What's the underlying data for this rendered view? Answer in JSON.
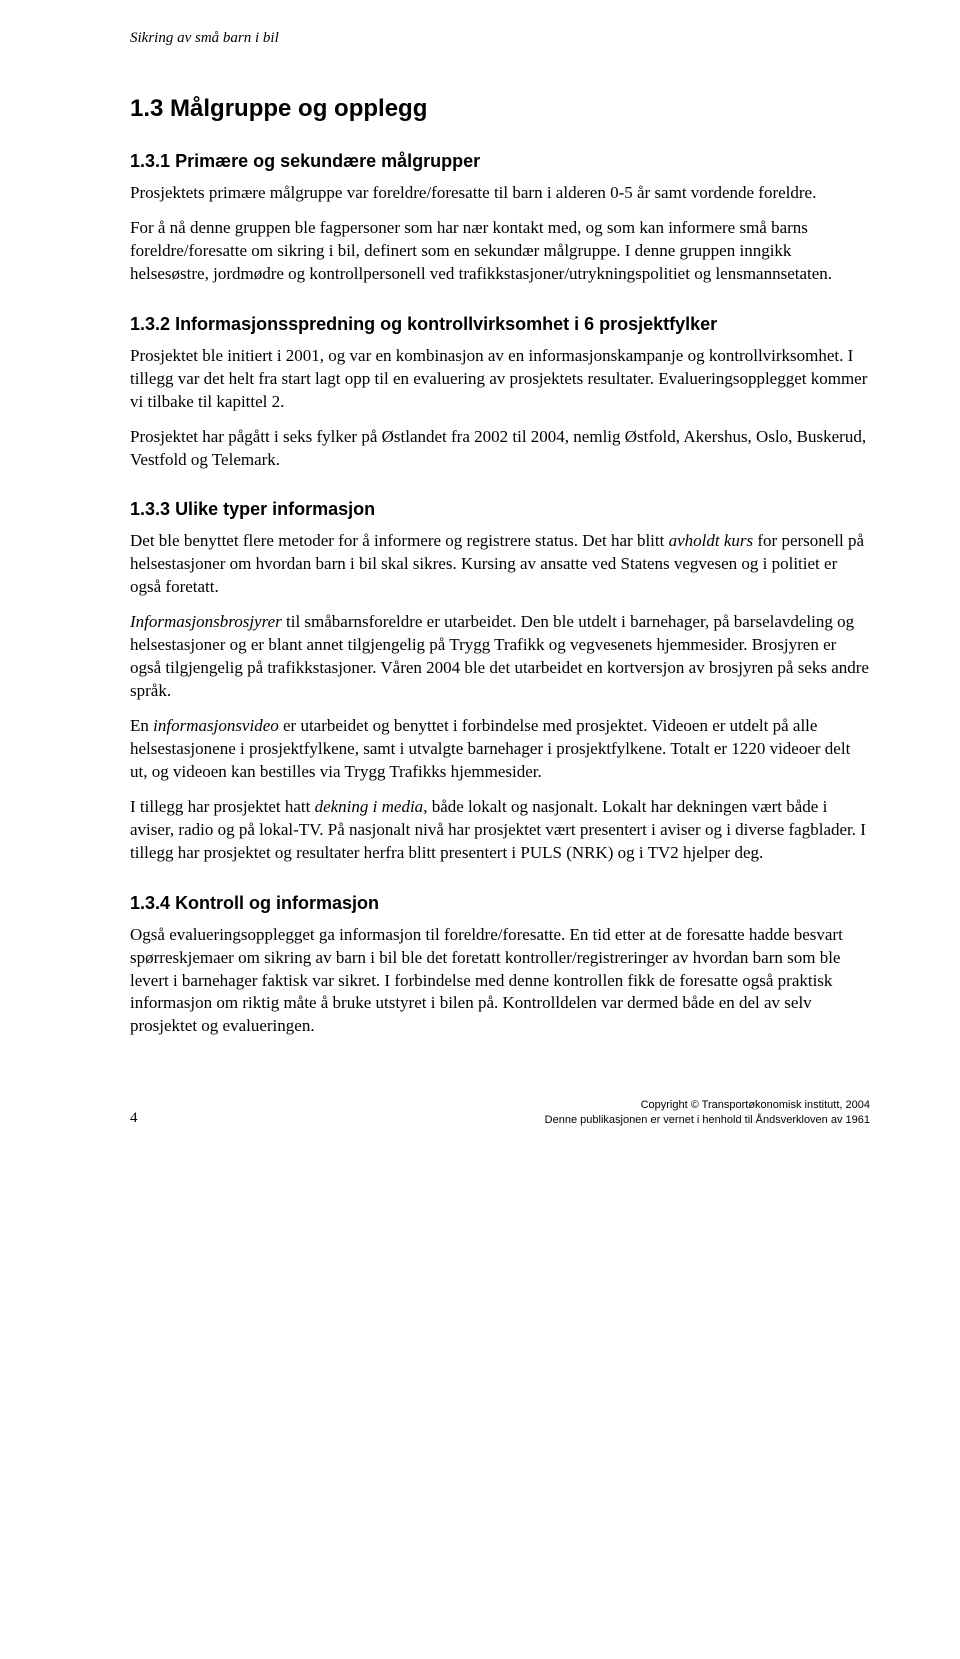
{
  "running_header": "Sikring av små barn i bil",
  "section": {
    "number": "1.3",
    "title": "Målgruppe og opplegg"
  },
  "subsections": [
    {
      "number": "1.3.1",
      "title": "Primære og sekundære målgrupper",
      "paragraphs": [
        "Prosjektets primære målgruppe var foreldre/foresatte til barn i alderen 0-5 år samt vordende foreldre.",
        "For å nå denne gruppen ble fagpersoner som har nær kontakt med, og som kan informere små barns foreldre/foresatte om sikring i bil, definert som en sekundær målgruppe. I denne gruppen inngikk helsesøstre, jordmødre og kontrollpersonell ved trafikkstasjoner/utrykningspolitiet og lensmannsetaten."
      ]
    },
    {
      "number": "1.3.2",
      "title": "Informasjonsspredning og kontrollvirksomhet i 6 prosjektfylker",
      "paragraphs": [
        "Prosjektet ble initiert i 2001, og var en kombinasjon av en informasjonskampanje og kontrollvirksomhet. I tillegg var det helt fra start lagt opp til en evaluering av prosjektets resultater. Evalueringsopplegget kommer vi tilbake til kapittel 2.",
        "Prosjektet har pågått i seks fylker på Østlandet fra 2002 til 2004, nemlig Østfold, Akershus, Oslo, Buskerud, Vestfold og Telemark."
      ]
    },
    {
      "number": "1.3.3",
      "title": "Ulike typer informasjon",
      "html_paragraphs": [
        "Det ble benyttet flere metoder for å informere og registrere status. Det har blitt <span class=\"italic\">avholdt kurs</span> for personell på helsestasjoner om hvordan barn i bil skal sikres. Kursing av ansatte ved Statens vegvesen og i politiet er også foretatt.",
        "<span class=\"italic\">Informasjonsbrosjyrer</span> til småbarnsforeldre er utarbeidet. Den ble utdelt i barnehager, på barselavdeling og helsestasjoner og er blant annet tilgjengelig på Trygg Trafikk og vegvesenets hjemmesider. Brosjyren er også tilgjengelig på trafikkstasjoner. Våren 2004 ble det utarbeidet en kortversjon av brosjyren på seks andre språk.",
        "En <span class=\"italic\">informasjonsvideo</span> er utarbeidet og benyttet i forbindelse med prosjektet. Videoen er utdelt på alle helsestasjonene i prosjektfylkene, samt i utvalgte barnehager i prosjektfylkene. Totalt er 1220 videoer delt ut, og videoen kan bestilles via Trygg Trafikks hjemmesider.",
        "I tillegg har prosjektet hatt <span class=\"italic\">dekning i media</span>, både lokalt og nasjonalt. Lokalt har dekningen vært både i aviser, radio og på lokal-TV. På nasjonalt nivå har prosjektet vært presentert i aviser og i diverse fagblader. I tillegg har prosjektet og resultater herfra blitt presentert i PULS (NRK) og i TV2 hjelper deg."
      ]
    },
    {
      "number": "1.3.4",
      "title": "Kontroll og informasjon",
      "paragraphs": [
        "Også evalueringsopplegget ga informasjon til foreldre/foresatte. En tid etter at de foresatte hadde besvart spørreskjemaer om sikring av barn i bil ble det foretatt kontroller/registreringer av hvordan barn som ble levert i barnehager faktisk var sikret. I forbindelse med denne kontrollen fikk de foresatte også praktisk informasjon om riktig måte å bruke utstyret i bilen på. Kontrolldelen var dermed både en del av selv prosjektet og evalueringen."
      ]
    }
  ],
  "footer": {
    "page_number": "4",
    "copyright_line1": "Copyright © Transportøkonomisk institutt, 2004",
    "copyright_line2": "Denne publikasjonen er vernet i henhold til Åndsverkloven av 1961"
  }
}
